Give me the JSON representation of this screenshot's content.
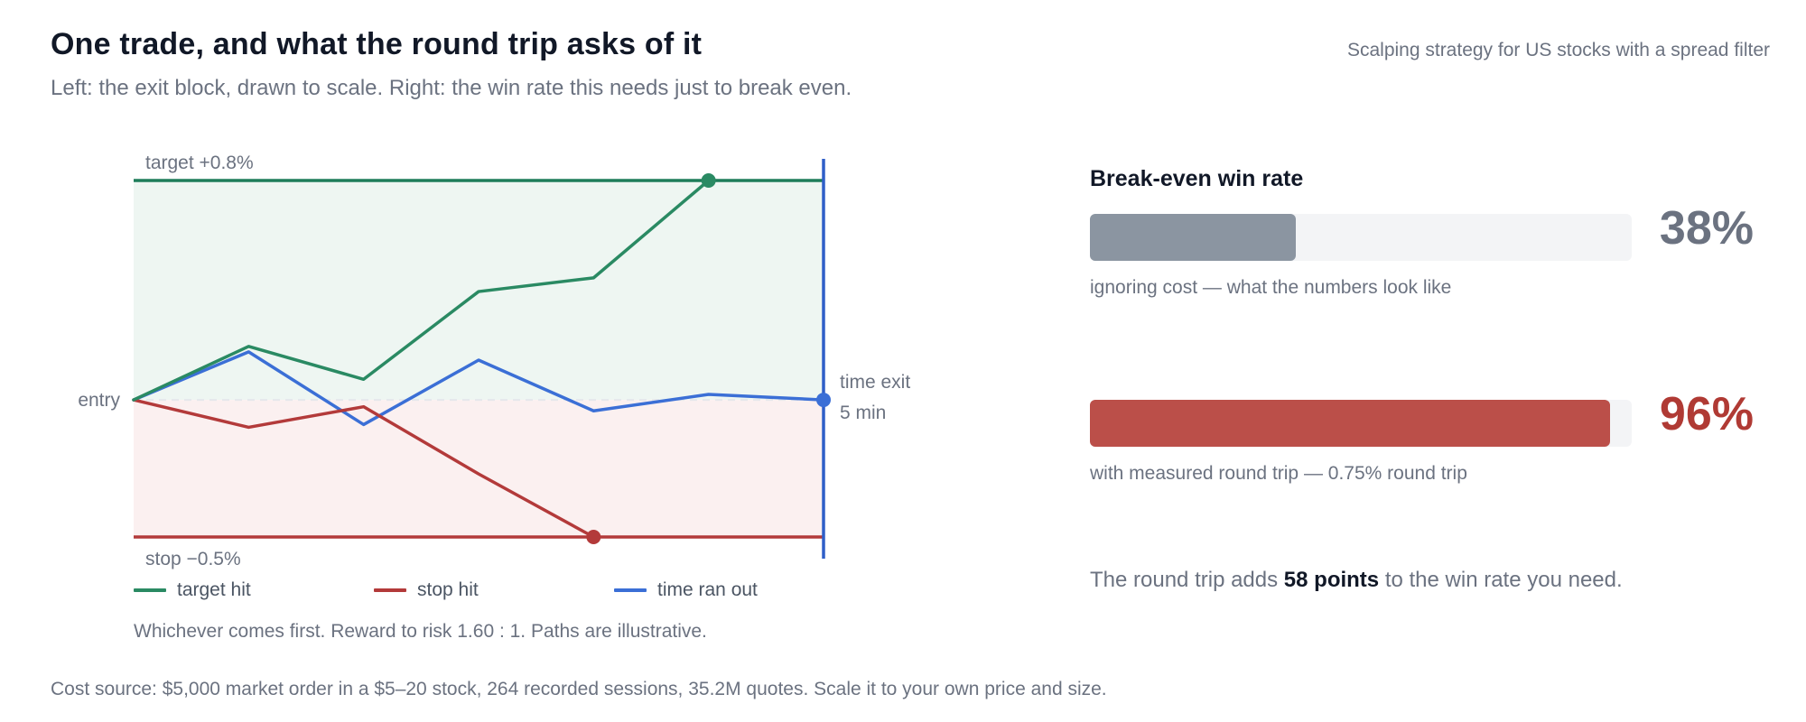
{
  "header": {
    "title": "One trade, and what the round trip asks of it",
    "subtitle": "Left: the exit block, drawn to scale. Right: the win rate this needs just to break even.",
    "context": "Scalping strategy for US stocks with a spread filter"
  },
  "chart_data": [
    {
      "type": "line",
      "x_units": "steps (illustrative)",
      "y_units": "% from entry",
      "ylim": [
        -0.5,
        0.8
      ],
      "levels": {
        "target": {
          "value": 0.8,
          "label": "target +0.8%",
          "color": "#1e7d5a"
        },
        "entry": {
          "value": 0.0,
          "label": "entry"
        },
        "stop": {
          "value": -0.5,
          "label": "stop −0.5%",
          "color": "#b33a3a"
        },
        "time_exit": {
          "label_line1": "time exit",
          "label_line2": "5 min",
          "color": "#2f5fc8"
        }
      },
      "series": [
        {
          "name": "target hit",
          "color": "#2a8a63",
          "x": [
            0,
            1,
            2,
            3,
            4,
            5
          ],
          "y": [
            0.0,
            0.195,
            0.075,
            0.395,
            0.445,
            0.8
          ]
        },
        {
          "name": "stop hit",
          "color": "#b33a3a",
          "x": [
            0,
            1,
            2,
            3,
            4
          ],
          "y": [
            0.0,
            -0.1,
            -0.025,
            -0.27,
            -0.5
          ]
        },
        {
          "name": "time ran out",
          "color": "#3b6fd6",
          "x": [
            0,
            1,
            2,
            3,
            4,
            5,
            6
          ],
          "y": [
            0.0,
            0.175,
            -0.09,
            0.145,
            -0.04,
            0.02,
            0.0
          ]
        }
      ],
      "legend": [
        "target hit",
        "stop hit",
        "time ran out"
      ],
      "note": "Whichever comes first. Reward to risk 1.60 : 1. Paths are illustrative."
    },
    {
      "type": "bar",
      "title": "Break-even win rate",
      "xlim": [
        0,
        100
      ],
      "bars": [
        {
          "value": 38,
          "label": "38%",
          "caption": "ignoring cost — what the numbers look like",
          "color": "#8b95a1",
          "label_color": "#6b7280"
        },
        {
          "value": 96,
          "label": "96%",
          "caption": "with measured round trip — 0.75% round trip",
          "color": "#bb4f49",
          "label_color": "#b03a34"
        }
      ]
    }
  ],
  "conclusion": {
    "prefix": "The round trip adds ",
    "highlight": "58 points",
    "suffix": " to the win rate you need."
  },
  "footer": "Cost source: $5,000 market order in a $5–20 stock, 264 recorded sessions, 35.2M quotes. Scale it to your own price and size."
}
